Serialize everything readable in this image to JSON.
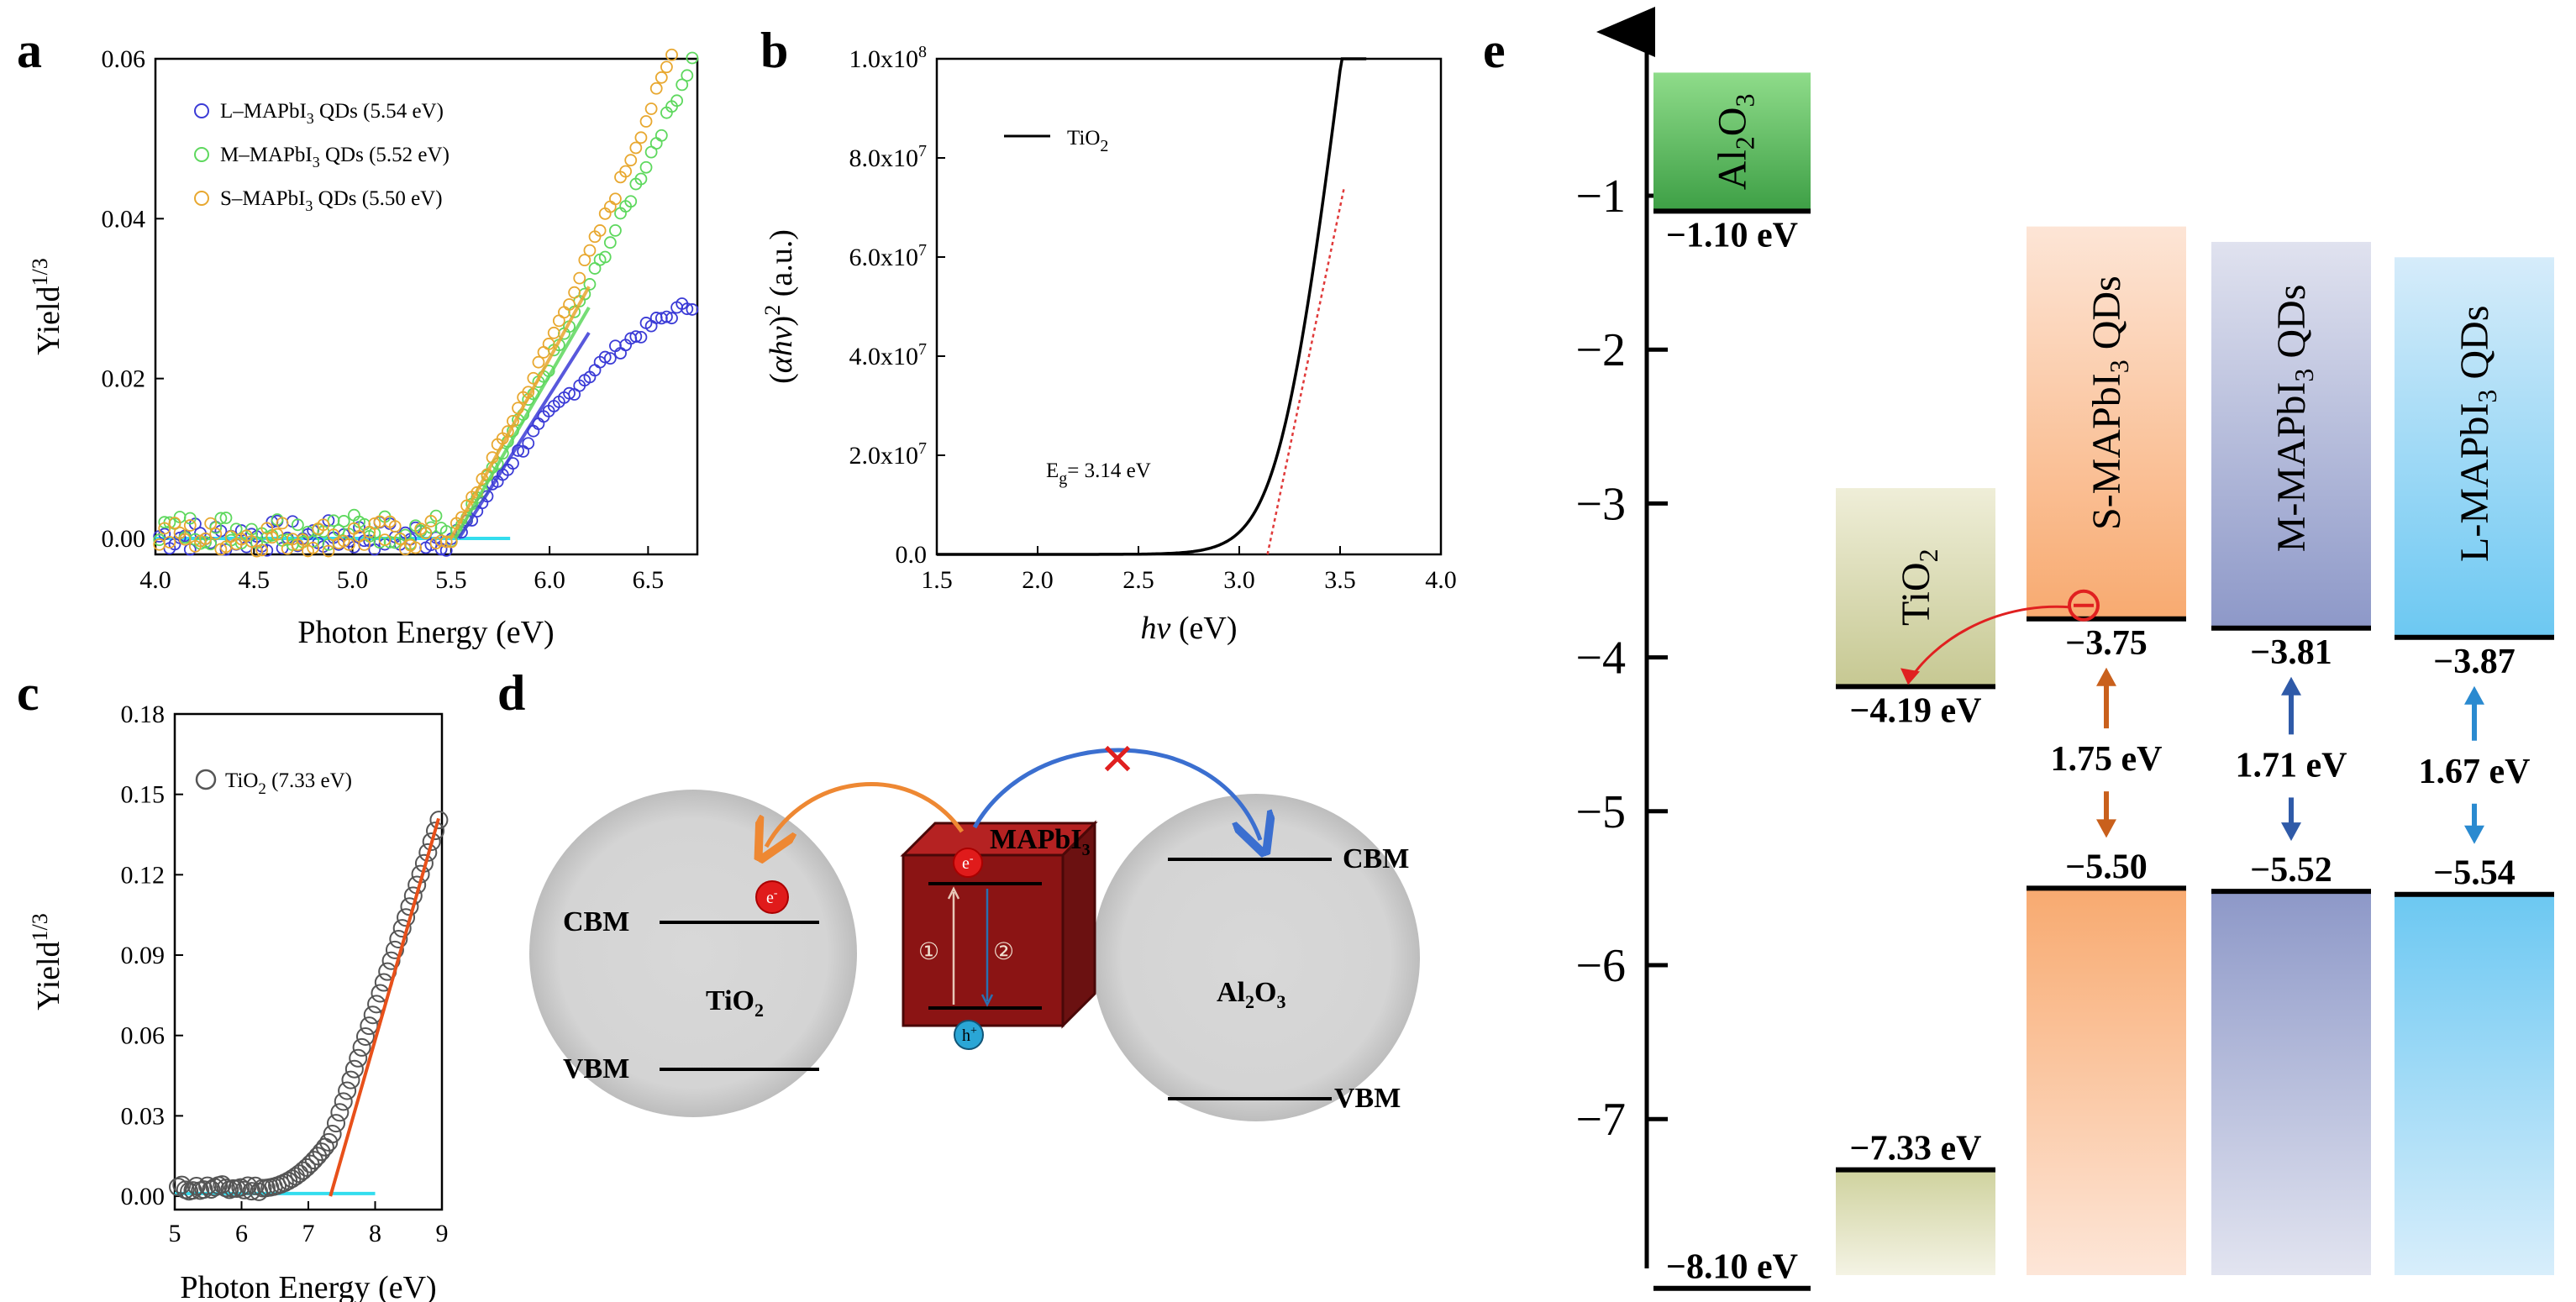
{
  "panel_labels": {
    "a": "a",
    "b": "b",
    "c": "c",
    "d": "d",
    "e": "e"
  },
  "colors": {
    "L": "#3b3bd6",
    "M": "#5ed85e",
    "S": "#e8a830",
    "fit": "#3355dd",
    "base": "#33ddee",
    "red": "#e03a3a",
    "orange": "#ee8833",
    "blue": "#3b6fd0"
  },
  "chart_data": [
    {
      "id": "a",
      "type": "scatter",
      "xlabel": "Photon Energy (eV)",
      "ylabel_base": "Yield",
      "ylabel_sup": "1/3",
      "xlim": [
        4.0,
        6.75
      ],
      "ylim": [
        -0.002,
        0.06
      ],
      "xticks": [
        "4.0",
        "4.5",
        "5.0",
        "5.5",
        "6.0",
        "6.5"
      ],
      "yticks": [
        "0.00",
        "0.02",
        "0.04",
        "0.06"
      ],
      "series": [
        {
          "name": "L–MAPbI3 QDs (5.54 eV)",
          "label_pre": "L–MAPbI",
          "label_sub": "3",
          "label_post": " QDs (5.54 eV)",
          "color": "#3b3bd6",
          "threshold": 5.54,
          "slope": 0.039,
          "curv": -0.012
        },
        {
          "name": "M–MAPbI3 QDs (5.52 eV)",
          "label_pre": "M–MAPbI",
          "label_sub": "3",
          "label_post": " QDs (5.52 eV)",
          "color": "#5ed85e",
          "threshold": 5.52,
          "slope": 0.0425,
          "curv": 0.006
        },
        {
          "name": "S–MAPbI3 QDs (5.50 eV)",
          "label_pre": "S–MAPbI",
          "label_sub": "3",
          "label_post": " QDs (5.50 eV)",
          "color": "#e8a830",
          "threshold": 5.5,
          "slope": 0.045,
          "curv": 0.008
        }
      ]
    },
    {
      "id": "b",
      "type": "line",
      "xlabel": "hv (eV)",
      "xlabel_it": "hv",
      "xlabel_rest": " (eV)",
      "ylabel": "(αhv)2 (a.u.)",
      "xlim": [
        1.5,
        4.0
      ],
      "ylim": [
        0,
        100000000.0
      ],
      "xticks": [
        "1.5",
        "2.0",
        "2.5",
        "3.0",
        "3.5",
        "4.0"
      ],
      "yticks": [
        {
          "base": "0.0",
          "exp": ""
        },
        {
          "base": "2.0x10",
          "exp": "7"
        },
        {
          "base": "4.0x10",
          "exp": "7"
        },
        {
          "base": "6.0x10",
          "exp": "7"
        },
        {
          "base": "8.0x10",
          "exp": "7"
        },
        {
          "base": "1.0x10",
          "exp": "8"
        }
      ],
      "series": [
        {
          "name": "TiO2",
          "label_pre": "TiO",
          "label_sub": "2"
        }
      ],
      "annotation": {
        "pre": "E",
        "sub": "g",
        "post": "= 3.14 eV",
        "eg": 3.14
      }
    },
    {
      "id": "c",
      "type": "scatter",
      "xlabel": "Photon Energy (eV)",
      "ylabel_base": "Yield",
      "ylabel_sup": "1/3",
      "xlim": [
        5,
        9
      ],
      "ylim": [
        -0.005,
        0.18
      ],
      "xticks": [
        "5",
        "6",
        "7",
        "8",
        "9"
      ],
      "yticks": [
        "0.00",
        "0.03",
        "0.06",
        "0.09",
        "0.12",
        "0.15",
        "0.18"
      ],
      "series": [
        {
          "name": "TiO2 (7.33 eV)",
          "label_pre": "TiO",
          "label_sub": "2",
          "label_post": " (7.33 eV)",
          "threshold": 7.33
        }
      ]
    },
    {
      "id": "e",
      "type": "energy-level diagram",
      "ylim": [
        -7.8,
        -0.2
      ],
      "yticks": [
        "−1",
        "−2",
        "−3",
        "−4",
        "−5",
        "−6",
        "−7"
      ],
      "materials": [
        {
          "name": "Al2O3",
          "pre": "Al",
          "sub1": "2",
          "mid": "O",
          "sub2": "3",
          "cbm": -1.1,
          "vbm": -8.1,
          "cbm_label": "−1.10 eV",
          "vbm_label": "−8.10 eV"
        },
        {
          "name": "TiO2",
          "pre": "TiO",
          "sub1": "2",
          "cbm": -4.19,
          "vbm": -7.33,
          "cbm_label": "−4.19 eV",
          "vbm_label": "−7.33 eV"
        },
        {
          "name": "S-MAPbI3 QDs",
          "pre": "S-MAPbI",
          "sub1": "3",
          "post": " QDs",
          "cbm": -3.75,
          "vbm": -5.5,
          "cbm_label": "−3.75",
          "vbm_label": "−5.50",
          "gap": "1.75 eV"
        },
        {
          "name": "M-MAPbI3 QDs",
          "pre": "M-MAPbI",
          "sub1": "3",
          "post": " QDs",
          "cbm": -3.81,
          "vbm": -5.52,
          "cbm_label": "−3.81",
          "vbm_label": "−5.52",
          "gap": "1.71 eV"
        },
        {
          "name": "L-MAPbI3 QDs",
          "pre": "L-MAPbI",
          "sub1": "3",
          "post": " QDs",
          "cbm": -3.87,
          "vbm": -5.54,
          "cbm_label": "−3.87",
          "vbm_label": "−5.54",
          "gap": "1.67 eV"
        }
      ]
    }
  ],
  "schematic_d": {
    "tio2": {
      "pre": "TiO",
      "sub": "2",
      "cbm": "CBM",
      "vbm": "VBM"
    },
    "al2o3": {
      "pre": "Al",
      "sub1": "2",
      "mid": "O",
      "sub2": "3",
      "cbm": "CBM",
      "vbm": "VBM"
    },
    "cube": {
      "pre": "MAPbI",
      "sub": "3"
    },
    "electron": "e",
    "electron_sup": "-",
    "hole": "h",
    "hole_sup": "+",
    "step1": "①",
    "step2": "②",
    "blocked": "✕"
  }
}
